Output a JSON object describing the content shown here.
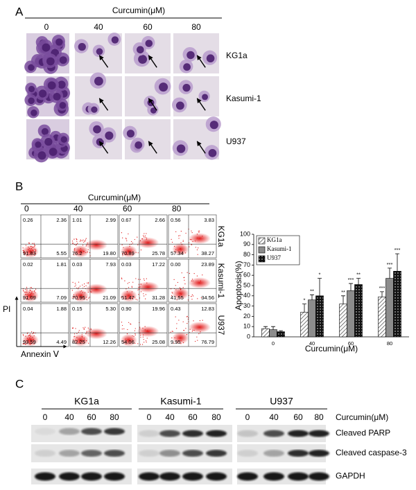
{
  "panel_a": {
    "label": "A",
    "treatment": "Curcumin(μM)",
    "doses": [
      "0",
      "40",
      "60",
      "80"
    ],
    "cell_lines": [
      "KG1a",
      "Kasumi-1",
      "U937"
    ]
  },
  "panel_b": {
    "label": "B",
    "treatment": "Curcumin(μM)",
    "doses": [
      "0",
      "40",
      "60",
      "80"
    ],
    "cell_lines": [
      "KG1a",
      "Kasumi-1",
      "U937"
    ],
    "y_axis": "PI",
    "x_axis": "Annexin Ⅴ",
    "quadrants": [
      [
        [
          "0.26",
          "2.36",
          "91.83",
          "5.55"
        ],
        [
          "1.01",
          "2.99",
          "76.2",
          "19.80"
        ],
        [
          "0.67",
          "2.66",
          "70.89",
          "25.78"
        ],
        [
          "0.56",
          "3.83",
          "57.34",
          "38.27"
        ]
      ],
      [
        [
          "0.02",
          "1.81",
          "91.09",
          "7.09"
        ],
        [
          "0.03",
          "7.93",
          "70.95",
          "21.09"
        ],
        [
          "0.03",
          "17.22",
          "51.47",
          "31.28"
        ],
        [
          "0.00",
          "23.89",
          "41.55",
          "34.56"
        ]
      ],
      [
        [
          "0.04",
          "1.88",
          "93.59",
          "4.49"
        ],
        [
          "0.15",
          "5.30",
          "82.25",
          "12.26"
        ],
        [
          "0.90",
          "19.96",
          "54.06",
          "25.08"
        ],
        [
          "0.43",
          "12.83",
          "9.95",
          "76.79"
        ]
      ]
    ]
  },
  "chart_data": {
    "type": "bar",
    "y_label": "Apoptosis(%)",
    "x_label": "Curcumin(μM)",
    "categories": [
      "0",
      "40",
      "60",
      "80"
    ],
    "series": [
      {
        "name": "KG1a",
        "color": "#555555",
        "fill": "hatch",
        "values": [
          8,
          24,
          32,
          39
        ],
        "errors": [
          2,
          8,
          8,
          5
        ],
        "stars": [
          null,
          "*",
          "**",
          "***"
        ]
      },
      {
        "name": "Kasumi-1",
        "color": "#8c8c8c",
        "fill": "solid",
        "values": [
          7,
          36,
          45,
          57
        ],
        "errors": [
          3,
          5,
          7,
          10
        ],
        "stars": [
          null,
          "**",
          "***",
          "***"
        ]
      },
      {
        "name": "U937",
        "color": "#111111",
        "fill": "dots",
        "values": [
          5,
          40,
          51,
          64
        ],
        "errors": [
          1,
          17,
          6,
          17
        ],
        "stars": [
          null,
          "*",
          "**",
          "***"
        ]
      }
    ],
    "ylim": [
      0,
      100
    ],
    "yticks": [
      0,
      10,
      20,
      30,
      40,
      50,
      60,
      70,
      80,
      90,
      100
    ],
    "grid": false,
    "legend": "top-left"
  },
  "panel_c": {
    "label": "C",
    "treatment": "Curcumin(μM)",
    "cell_lines": [
      "KG1a",
      "Kasumi-1",
      "U937"
    ],
    "doses": [
      "0",
      "40",
      "60",
      "80"
    ],
    "proteins": [
      "Cleaved PARP",
      "Cleaved caspase-3",
      "GAPDH"
    ]
  }
}
